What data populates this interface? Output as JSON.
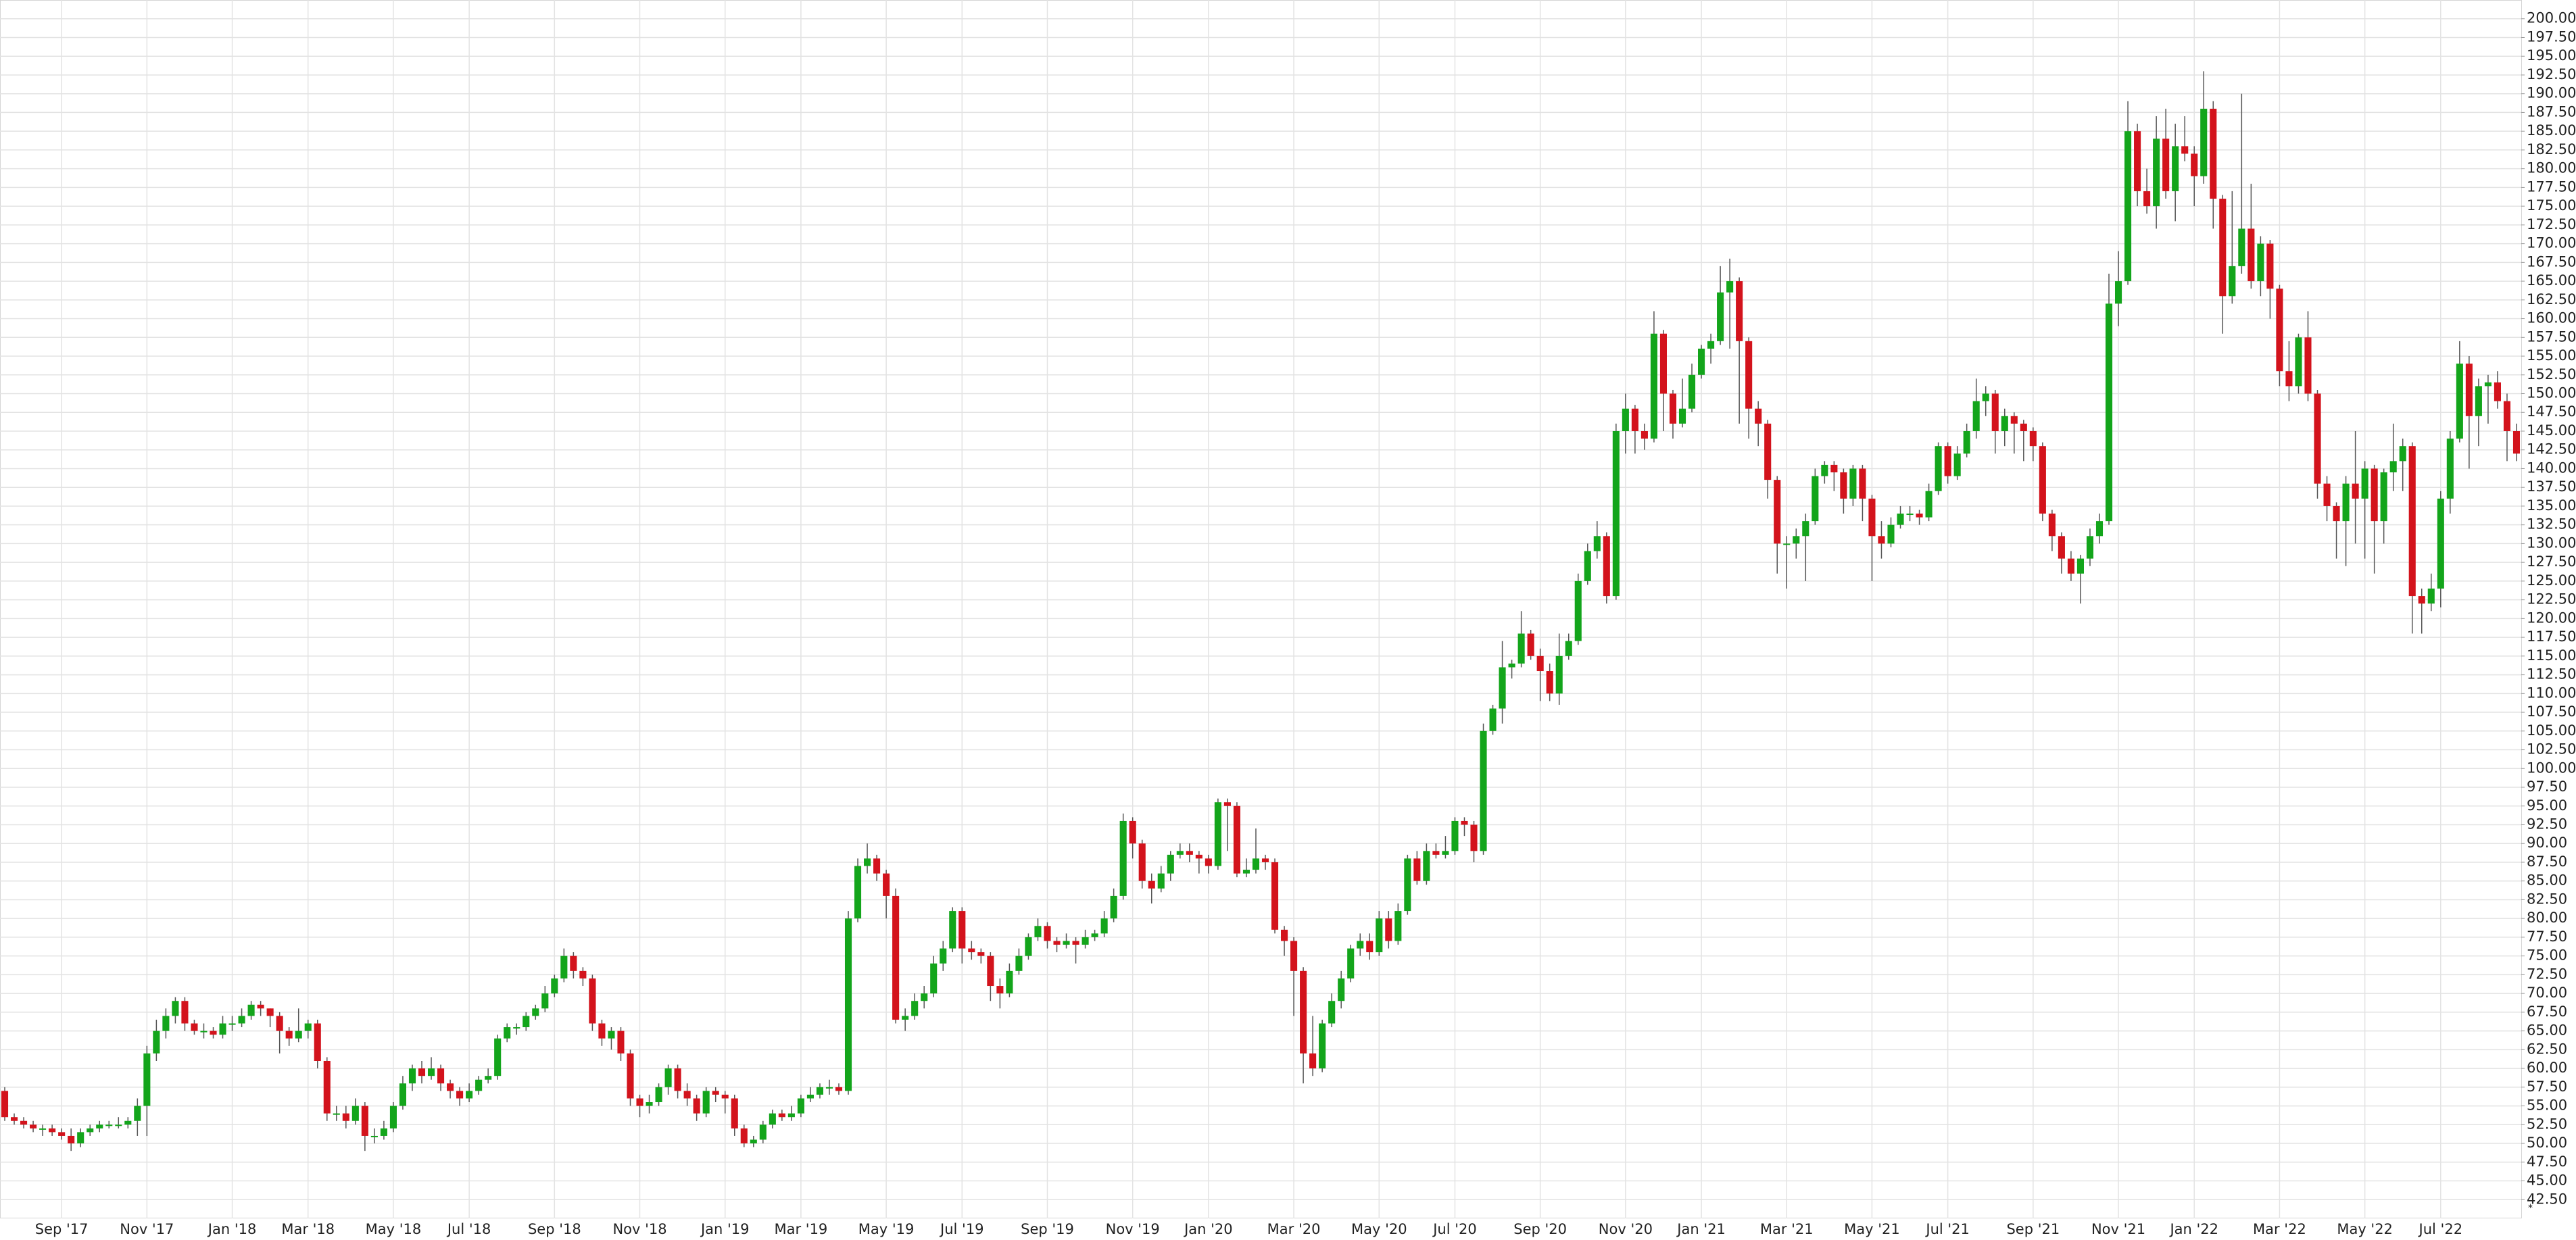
{
  "chart_data": {
    "type": "candlestick",
    "categories": [
      null,
      null,
      null,
      null,
      null,
      null,
      "Sep '17",
      null,
      null,
      null,
      null,
      null,
      null,
      null,
      null,
      "Nov '17",
      null,
      null,
      null,
      null,
      null,
      null,
      null,
      null,
      "Jan '18",
      null,
      null,
      null,
      null,
      null,
      null,
      null,
      "Mar '18",
      null,
      null,
      null,
      null,
      null,
      null,
      null,
      null,
      "May '18",
      null,
      null,
      null,
      null,
      null,
      null,
      null,
      "Jul '18",
      null,
      null,
      null,
      null,
      null,
      null,
      null,
      null,
      "Sep '18",
      null,
      null,
      null,
      null,
      null,
      null,
      null,
      null,
      "Nov '18",
      null,
      null,
      null,
      null,
      null,
      null,
      null,
      null,
      "Jan '19",
      null,
      null,
      null,
      null,
      null,
      null,
      null,
      "Mar '19",
      null,
      null,
      null,
      null,
      null,
      null,
      null,
      null,
      "May '19",
      null,
      null,
      null,
      null,
      null,
      null,
      null,
      "Jul '19",
      null,
      null,
      null,
      null,
      null,
      null,
      null,
      null,
      "Sep '19",
      null,
      null,
      null,
      null,
      null,
      null,
      null,
      null,
      "Nov '19",
      null,
      null,
      null,
      null,
      null,
      null,
      null,
      "Jan '20",
      null,
      null,
      null,
      null,
      null,
      null,
      null,
      null,
      "Mar '20",
      null,
      null,
      null,
      null,
      null,
      null,
      null,
      null,
      "May '20",
      null,
      null,
      null,
      null,
      null,
      null,
      null,
      "Jul '20",
      null,
      null,
      null,
      null,
      null,
      null,
      null,
      null,
      "Sep '20",
      null,
      null,
      null,
      null,
      null,
      null,
      null,
      null,
      "Nov '20",
      null,
      null,
      null,
      null,
      null,
      null,
      null,
      "Jan '21",
      null,
      null,
      null,
      null,
      null,
      null,
      null,
      null,
      "Mar '21",
      null,
      null,
      null,
      null,
      null,
      null,
      null,
      null,
      "May '21",
      null,
      null,
      null,
      null,
      null,
      null,
      null,
      "Jul '21",
      null,
      null,
      null,
      null,
      null,
      null,
      null,
      null,
      "Sep '21",
      null,
      null,
      null,
      null,
      null,
      null,
      null,
      null,
      "Nov '21",
      null,
      null,
      null,
      null,
      null,
      null,
      null,
      "Jan '22",
      null,
      null,
      null,
      null,
      null,
      null,
      null,
      null,
      "Mar '22",
      null,
      null,
      null,
      null,
      null,
      null,
      null,
      null,
      "May '22",
      null,
      null,
      null,
      null,
      null,
      null,
      null,
      "Jul '22",
      null,
      null,
      null,
      null,
      null,
      null,
      null,
      null
    ],
    "open": [
      57,
      53.5,
      53,
      52.5,
      52,
      52,
      51.5,
      51,
      50,
      51.5,
      52,
      52.5,
      52.5,
      52.5,
      53,
      55,
      62,
      65,
      67,
      69,
      66,
      65,
      65,
      64.5,
      66,
      66,
      67,
      68.5,
      68,
      67,
      65,
      64,
      65,
      66,
      61,
      54,
      54,
      53,
      55,
      51,
      51,
      52,
      55,
      58,
      60,
      59,
      60,
      58,
      57,
      56,
      57,
      58.5,
      59,
      64,
      65.5,
      65.5,
      67,
      68,
      70,
      72,
      75,
      73,
      72,
      66,
      64,
      65,
      62,
      56,
      55,
      55.5,
      57.5,
      60,
      57,
      56,
      54,
      57,
      56.5,
      56,
      52,
      50,
      50.5,
      52.5,
      54,
      53.5,
      54,
      56,
      56.5,
      57.5,
      57.5,
      57,
      80,
      87,
      88,
      86,
      83,
      66.5,
      67,
      69,
      70,
      74,
      76,
      81,
      76,
      75.5,
      75,
      71,
      70,
      73,
      75,
      77.5,
      79,
      77,
      76.5,
      77,
      76.5,
      77.5,
      78,
      80,
      83,
      93,
      90,
      85,
      84,
      86,
      88.5,
      89,
      88.5,
      88,
      87,
      95.5,
      95,
      86,
      86.5,
      88,
      87.5,
      78.5,
      77,
      73,
      62,
      60,
      66,
      69,
      72,
      76,
      77,
      75.5,
      80,
      77,
      81,
      88,
      85,
      89,
      88.5,
      89,
      93,
      92.5,
      89,
      105,
      108,
      113.5,
      114,
      118,
      115,
      113,
      110,
      115,
      117,
      125,
      129,
      131,
      123,
      145,
      148,
      145,
      144,
      158,
      150,
      146,
      148,
      152.5,
      156,
      157,
      163.5,
      165,
      157,
      148,
      146,
      138.5,
      130,
      130,
      131,
      133,
      139,
      140.5,
      139.5,
      136,
      140,
      136,
      131,
      130,
      132.5,
      134,
      134,
      133.5,
      137,
      143,
      139,
      142,
      145,
      149,
      150,
      145,
      147,
      146,
      145,
      143,
      134,
      131,
      128,
      126,
      128,
      131,
      133,
      162,
      165,
      185,
      177,
      175,
      184,
      177,
      183,
      182,
      179,
      188,
      176,
      163,
      167,
      172,
      165,
      170,
      164,
      153,
      151,
      157.5,
      150,
      138,
      135,
      133,
      138,
      136,
      140,
      133,
      139.5,
      141,
      143,
      123,
      122,
      124,
      136,
      144,
      154,
      147,
      151,
      151.5,
      149,
      145
    ],
    "high": [
      57.5,
      54,
      53.5,
      53,
      52.5,
      52.5,
      52,
      52,
      52,
      52.5,
      53,
      53,
      53.5,
      53.5,
      56,
      63,
      66.5,
      68,
      69.5,
      69.5,
      66.5,
      66,
      65.5,
      67,
      67,
      68,
      69,
      69,
      68,
      67.5,
      65.5,
      68,
      66.5,
      66.5,
      61.5,
      55,
      55,
      56,
      55.5,
      52,
      53,
      55.5,
      59,
      60.5,
      61,
      61.5,
      60.5,
      58.5,
      57.5,
      58,
      59,
      60,
      64.5,
      66,
      66,
      67.5,
      68.5,
      71,
      72.5,
      76,
      75.5,
      73.5,
      72.5,
      66.5,
      65.5,
      65.5,
      62.5,
      56.5,
      56.5,
      58,
      60.5,
      60.5,
      58,
      56.5,
      57.5,
      57.5,
      57,
      56.5,
      52.5,
      51,
      53,
      54.5,
      54.5,
      55,
      56.5,
      57.5,
      58,
      58.5,
      58,
      81,
      88,
      90,
      88.5,
      86.5,
      84,
      68,
      70,
      71,
      75,
      77,
      81.5,
      81.5,
      77,
      76,
      75.5,
      72,
      74,
      76,
      78,
      80,
      79.5,
      77.5,
      78,
      77.5,
      78.5,
      78.5,
      81,
      84,
      94,
      93.5,
      90.5,
      86,
      87,
      89,
      90,
      90,
      89,
      88.5,
      96,
      96,
      95.5,
      88,
      92,
      88.5,
      88,
      79,
      77.5,
      73.5,
      67,
      66.5,
      70,
      73,
      76.5,
      78,
      78,
      81,
      81,
      82,
      88.5,
      89,
      90,
      90,
      91,
      93.5,
      93.5,
      93,
      106,
      108.5,
      117,
      114.5,
      121,
      118.5,
      116,
      114,
      118,
      118,
      126,
      130,
      133,
      131.5,
      146,
      150,
      148.5,
      146,
      161,
      158.5,
      150.5,
      152,
      154,
      156.5,
      158,
      167,
      168,
      165.5,
      157.5,
      149,
      146.5,
      139,
      131,
      132,
      134,
      140,
      141,
      141,
      140,
      140.5,
      140.5,
      136.5,
      133,
      133.5,
      135,
      135,
      134.5,
      138,
      143.5,
      143.5,
      143,
      146,
      152,
      151,
      150.5,
      148,
      147.5,
      146.5,
      145.5,
      143.5,
      134.5,
      131.5,
      129,
      128.5,
      132,
      134,
      166,
      169,
      189,
      186,
      180,
      187,
      188,
      186,
      187,
      183,
      193,
      189,
      176.5,
      177,
      190,
      178,
      171,
      170.5,
      164.5,
      157,
      158,
      161,
      150.5,
      139,
      135.5,
      139,
      145,
      141,
      140.5,
      140,
      146,
      144,
      143.5,
      124,
      126,
      137,
      145,
      157,
      155,
      152,
      152.5,
      153,
      150,
      146
    ],
    "low": [
      53,
      52.5,
      52,
      51.5,
      51,
      51,
      50.5,
      49,
      49.5,
      51,
      51.5,
      52,
      52,
      52,
      51,
      51,
      61,
      64,
      66,
      65,
      64.5,
      64,
      64,
      64,
      65,
      65.5,
      66.5,
      67,
      65.5,
      62,
      63,
      63.5,
      64,
      60,
      53,
      53,
      52,
      52.5,
      49,
      50,
      50.5,
      51.5,
      54.5,
      57,
      58,
      58.5,
      57,
      56,
      55,
      55.5,
      56.5,
      58,
      58.5,
      63.5,
      64.5,
      65,
      66.5,
      67.5,
      69.5,
      71.5,
      72,
      71,
      65,
      63,
      62.5,
      61,
      55,
      53.5,
      54,
      55,
      56.5,
      56,
      55,
      53,
      53.5,
      55.5,
      54,
      51,
      49.5,
      49.5,
      50,
      52,
      53,
      53,
      53.5,
      55.5,
      56,
      56.5,
      56.5,
      56.5,
      79.5,
      86,
      85,
      80,
      66,
      65,
      66.5,
      68,
      69.5,
      73,
      75.5,
      74,
      74.5,
      74,
      69,
      68,
      69.5,
      72.5,
      74.5,
      77,
      76,
      75.5,
      76,
      74,
      76,
      77,
      77.5,
      79.5,
      82.5,
      88,
      84,
      82,
      83.5,
      85,
      88,
      87.5,
      86,
      86,
      86.5,
      89,
      85.5,
      85.5,
      86,
      86.5,
      78,
      75,
      67,
      58,
      59,
      59.5,
      65.5,
      68,
      71.5,
      75,
      74.5,
      75,
      76,
      76.5,
      80.5,
      84.5,
      84.5,
      88,
      88,
      88.5,
      91,
      87.5,
      88.5,
      104.5,
      106,
      112,
      113.5,
      114.5,
      109,
      109,
      108.5,
      114.5,
      116.5,
      124.5,
      128,
      122,
      122.5,
      142,
      142,
      142.5,
      143.5,
      145,
      144,
      145.5,
      147.5,
      152,
      154,
      156.5,
      156,
      146,
      144,
      143,
      136,
      126,
      124,
      128,
      125,
      132.5,
      138,
      137,
      134,
      135,
      133,
      125,
      128,
      129.5,
      132,
      133,
      132.5,
      133,
      136.5,
      138,
      138.5,
      141.5,
      144,
      147,
      142,
      143,
      142,
      141,
      141,
      133,
      129,
      126,
      125,
      122,
      127,
      130,
      132.5,
      159,
      164.5,
      175,
      174,
      172,
      176,
      173,
      181,
      175,
      178,
      172,
      158,
      162,
      166,
      164,
      163,
      160,
      151,
      149,
      150,
      149,
      136,
      133,
      128,
      127,
      130,
      128,
      126,
      130,
      137,
      137,
      118,
      118,
      121,
      121.5,
      134,
      143.5,
      140,
      143,
      146,
      148,
      141,
      141
    ],
    "close": [
      53.5,
      53,
      52.5,
      52,
      52,
      51.5,
      51,
      50,
      51.5,
      52,
      52.5,
      52.5,
      52.5,
      53,
      55,
      62,
      65,
      67,
      69,
      66,
      65,
      65,
      64.5,
      66,
      66,
      67,
      68.5,
      68,
      67,
      65,
      64,
      65,
      66,
      61,
      54,
      54,
      53,
      55,
      51,
      51,
      52,
      55,
      58,
      60,
      59,
      60,
      58,
      57,
      56,
      57,
      58.5,
      59,
      64,
      65.5,
      65.5,
      67,
      68,
      70,
      72,
      75,
      73,
      72,
      66,
      64,
      65,
      62,
      56,
      55,
      55.5,
      57.5,
      60,
      57,
      56,
      54,
      57,
      56.5,
      56,
      52,
      50,
      50.5,
      52.5,
      54,
      53.5,
      54,
      56,
      56.5,
      57.5,
      57.5,
      57,
      80,
      87,
      88,
      86,
      83,
      66.5,
      67,
      69,
      70,
      74,
      76,
      81,
      76,
      75.5,
      75,
      71,
      70,
      73,
      75,
      77.5,
      79,
      77,
      76.5,
      77,
      76.5,
      77.5,
      78,
      80,
      83,
      93,
      90,
      85,
      84,
      86,
      88.5,
      89,
      88.5,
      88,
      87,
      95.5,
      95,
      86,
      86.5,
      88,
      87.5,
      78.5,
      77,
      73,
      62,
      60,
      66,
      69,
      72,
      76,
      77,
      75.5,
      80,
      77,
      81,
      88,
      85,
      89,
      88.5,
      89,
      93,
      92.5,
      89,
      105,
      108,
      113.5,
      114,
      118,
      115,
      113,
      110,
      115,
      117,
      125,
      129,
      131,
      123,
      145,
      148,
      145,
      144,
      158,
      150,
      146,
      148,
      152.5,
      156,
      157,
      163.5,
      165,
      157,
      148,
      146,
      138.5,
      130,
      130,
      131,
      133,
      139,
      140.5,
      139.5,
      136,
      140,
      136,
      131,
      130,
      132.5,
      134,
      134,
      133.5,
      137,
      143,
      139,
      142,
      145,
      149,
      150,
      145,
      147,
      146,
      145,
      143,
      134,
      131,
      128,
      126,
      128,
      131,
      133,
      162,
      165,
      185,
      177,
      175,
      184,
      177,
      183,
      182,
      179,
      188,
      176,
      163,
      167,
      172,
      165,
      170,
      164,
      153,
      151,
      157.5,
      150,
      138,
      135,
      133,
      138,
      136,
      140,
      133,
      139.5,
      141,
      143,
      123,
      122,
      124,
      136,
      144,
      154,
      147,
      151,
      151.5,
      149,
      145,
      142
    ],
    "up_color": "#13a51b",
    "down_color": "#d3131c",
    "ylim": [
      40,
      202.5
    ],
    "yticks": [
      {
        "value": 42.5,
        "label": "42.50"
      },
      {
        "value": 45,
        "label": "45.00"
      },
      {
        "value": 47.5,
        "label": "47.50"
      },
      {
        "value": 50,
        "label": "50.00"
      },
      {
        "value": 52.5,
        "label": "52.50"
      },
      {
        "value": 55,
        "label": "55.00"
      },
      {
        "value": 57.5,
        "label": "57.50"
      },
      {
        "value": 60,
        "label": "60.00"
      },
      {
        "value": 62.5,
        "label": "62.50"
      },
      {
        "value": 65,
        "label": "65.00"
      },
      {
        "value": 67.5,
        "label": "67.50"
      },
      {
        "value": 70,
        "label": "70.00"
      },
      {
        "value": 72.5,
        "label": "72.50"
      },
      {
        "value": 75,
        "label": "75.00"
      },
      {
        "value": 77.5,
        "label": "77.50"
      },
      {
        "value": 80,
        "label": "80.00"
      },
      {
        "value": 82.5,
        "label": "82.50"
      },
      {
        "value": 85,
        "label": "85.00"
      },
      {
        "value": 87.5,
        "label": "87.50"
      },
      {
        "value": 90,
        "label": "90.00"
      },
      {
        "value": 92.5,
        "label": "92.50"
      },
      {
        "value": 95,
        "label": "95.00"
      },
      {
        "value": 97.5,
        "label": "97.50"
      },
      {
        "value": 100,
        "label": "100.00"
      },
      {
        "value": 102.5,
        "label": "102.50"
      },
      {
        "value": 105,
        "label": "105.00"
      },
      {
        "value": 107.5,
        "label": "107.50"
      },
      {
        "value": 110,
        "label": "110.00"
      },
      {
        "value": 112.5,
        "label": "112.50"
      },
      {
        "value": 115,
        "label": "115.00"
      },
      {
        "value": 117.5,
        "label": "117.50"
      },
      {
        "value": 120,
        "label": "120.00"
      },
      {
        "value": 122.5,
        "label": "122.50"
      },
      {
        "value": 125,
        "label": "125.00"
      },
      {
        "value": 127.5,
        "label": "127.50"
      },
      {
        "value": 130,
        "label": "130.00"
      },
      {
        "value": 132.5,
        "label": "132.50"
      },
      {
        "value": 135,
        "label": "135.00"
      },
      {
        "value": 137.5,
        "label": "137.50"
      },
      {
        "value": 140,
        "label": "140.00"
      },
      {
        "value": 142.5,
        "label": "142.50"
      },
      {
        "value": 145,
        "label": "145.00"
      },
      {
        "value": 147.5,
        "label": "147.50"
      },
      {
        "value": 150,
        "label": "150.00"
      },
      {
        "value": 152.5,
        "label": "152.50"
      },
      {
        "value": 155,
        "label": "155.00"
      },
      {
        "value": 157.5,
        "label": "157.50"
      },
      {
        "value": 160,
        "label": "160.00"
      },
      {
        "value": 162.5,
        "label": "162.50"
      },
      {
        "value": 165,
        "label": "165.00"
      },
      {
        "value": 167.5,
        "label": "167.50"
      },
      {
        "value": 170,
        "label": "170.00"
      },
      {
        "value": 172.5,
        "label": "172.50"
      },
      {
        "value": 175,
        "label": "175.00"
      },
      {
        "value": 177.5,
        "label": "177.50"
      },
      {
        "value": 180,
        "label": "180.00"
      },
      {
        "value": 182.5,
        "label": "182.50"
      },
      {
        "value": 185,
        "label": "185.00"
      },
      {
        "value": 187.5,
        "label": "187.50"
      },
      {
        "value": 190,
        "label": "190.00"
      },
      {
        "value": 192.5,
        "label": "192.50"
      },
      {
        "value": 195,
        "label": "195.00"
      },
      {
        "value": 197.5,
        "label": "197.50"
      },
      {
        "value": 200,
        "label": "200.00"
      }
    ],
    "grid": true,
    "y_axis_side": "right",
    "corner_mark": "*"
  }
}
